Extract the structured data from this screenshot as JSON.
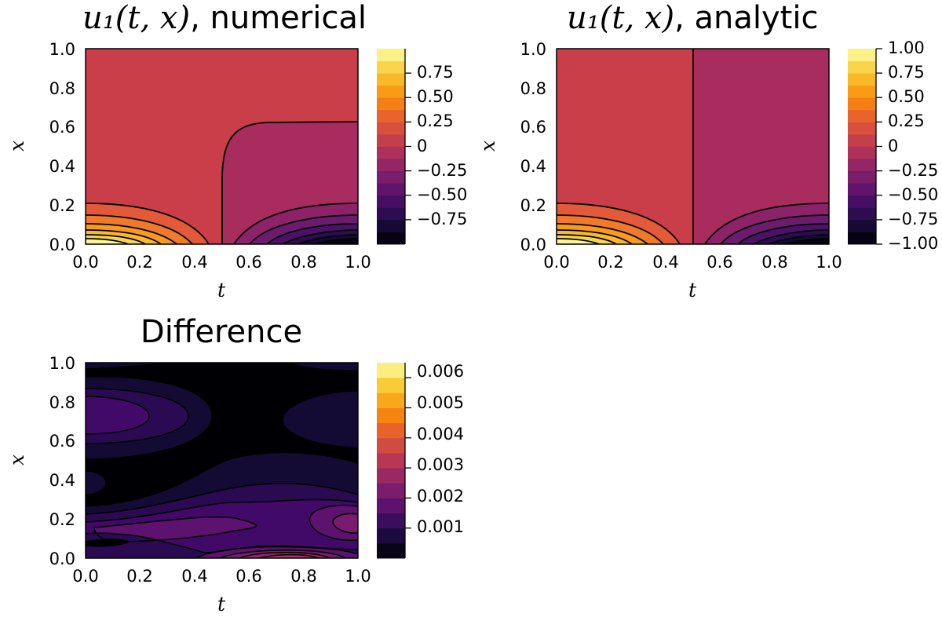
{
  "chart_data": [
    {
      "type": "contour",
      "title_math": "u₁(t, x)",
      "title_text": ", numerical",
      "xlabel": "t",
      "ylabel": "x",
      "xlim": [
        0.0,
        1.0
      ],
      "ylim": [
        0.0,
        1.0
      ],
      "xticks": [
        "0.0",
        "0.2",
        "0.4",
        "0.6",
        "0.8",
        "1.0"
      ],
      "yticks": [
        "0.0",
        "0.2",
        "0.4",
        "0.6",
        "0.8",
        "1.0"
      ],
      "colorbar": {
        "colormap": "inferno",
        "range": [
          -1.0,
          1.0
        ],
        "levels": 16,
        "ticks": [
          "0.75",
          "0.50",
          "0.25",
          "0",
          "−0.25",
          "−0.50",
          "−0.75"
        ],
        "tick_values": [
          0.75,
          0.5,
          0.25,
          0,
          -0.25,
          -0.5,
          -0.75
        ]
      },
      "description": "Region t<0.5 near value 0; region t>0.5 near value -0.125 above a curved boundary; concentric contour bands near x=0 growing positive toward t=0 and negative toward t=1."
    },
    {
      "type": "contour",
      "title_math": "u₁(t, x)",
      "title_text": ", analytic",
      "xlabel": "t",
      "ylabel": "x",
      "xlim": [
        0.0,
        1.0
      ],
      "ylim": [
        0.0,
        1.0
      ],
      "xticks": [
        "0.0",
        "0.2",
        "0.4",
        "0.6",
        "0.8",
        "1.0"
      ],
      "yticks": [
        "0.0",
        "0.2",
        "0.4",
        "0.6",
        "0.8",
        "1.0"
      ],
      "colorbar": {
        "colormap": "inferno",
        "range": [
          -1.0,
          1.0
        ],
        "levels": 16,
        "ticks": [
          "1.00",
          "0.75",
          "0.50",
          "0.25",
          "0",
          "−0.25",
          "−0.50",
          "−0.75",
          "−1.00"
        ],
        "tick_values": [
          1.0,
          0.75,
          0.5,
          0.25,
          0,
          -0.25,
          -0.5,
          -0.75,
          -1.0
        ]
      },
      "description": "Sharp vertical discontinuity at t=0.5; left region near 0, right region near -0.125; contour bands near x=0 on both sides."
    },
    {
      "type": "contour",
      "title_text": "Difference",
      "xlabel": "t",
      "ylabel": "x",
      "xlim": [
        0.0,
        1.0
      ],
      "ylim": [
        0.0,
        1.0
      ],
      "xticks": [
        "0.0",
        "0.2",
        "0.4",
        "0.6",
        "0.8",
        "1.0"
      ],
      "yticks": [
        "0.0",
        "0.2",
        "0.4",
        "0.6",
        "0.8",
        "1.0"
      ],
      "colorbar": {
        "colormap": "inferno",
        "range": [
          0.0,
          0.0065
        ],
        "levels": 13,
        "ticks": [
          "0.006",
          "0.005",
          "0.004",
          "0.003",
          "0.002",
          "0.001"
        ],
        "tick_values": [
          0.006,
          0.005,
          0.004,
          0.003,
          0.002,
          0.001
        ]
      },
      "description": "Mostly near zero; purple lobes near x=0.7 and x=0.2; maximum around 0.003 near x=0.02, t=0.75."
    }
  ]
}
